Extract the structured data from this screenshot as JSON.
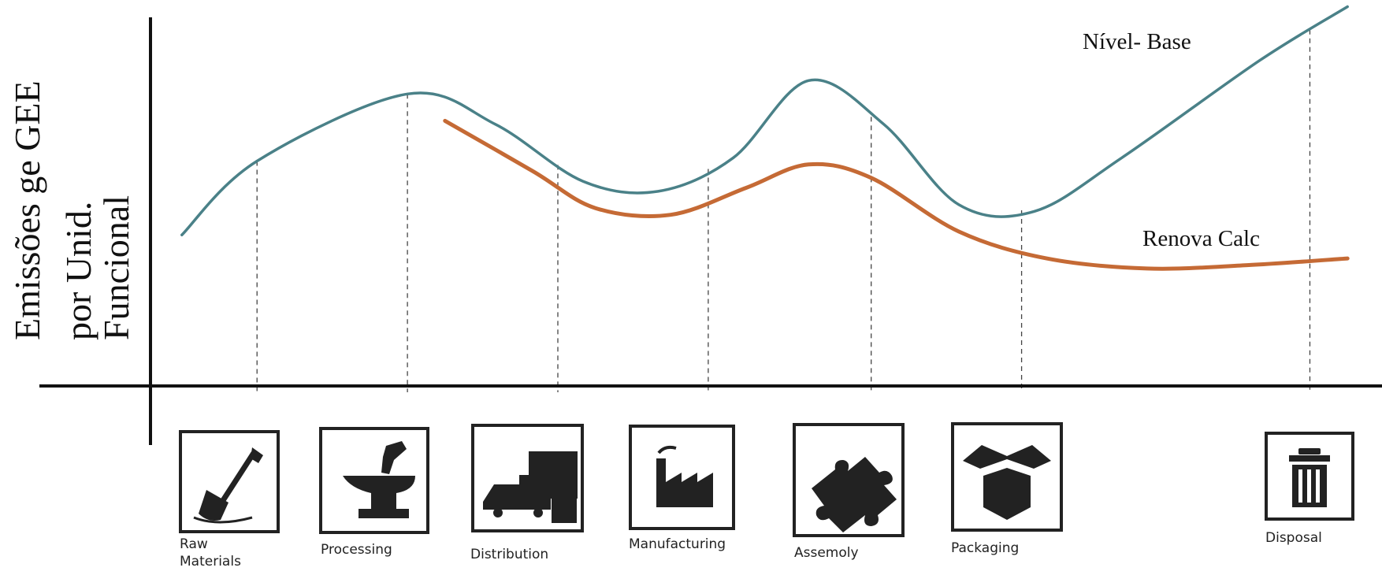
{
  "chart_data": {
    "type": "line",
    "ylabel_lines": [
      "Emissões ge GEE",
      "por Unid.",
      "Funcional"
    ],
    "categories": [
      "Raw Materials",
      "Processing",
      "Distribution",
      "Manufacturing",
      "Assemoly",
      "Packaging",
      "Disposal"
    ],
    "series": [
      {
        "name": "Nível- Base",
        "color": "#4a8188",
        "points": [
          [
            0.0,
            0.45
          ],
          [
            0.6,
            0.67
          ],
          [
            1.8,
            0.87
          ],
          [
            2.5,
            0.78
          ],
          [
            3.2,
            0.61
          ],
          [
            3.8,
            0.58
          ],
          [
            4.4,
            0.68
          ],
          [
            5.0,
            0.91
          ],
          [
            5.6,
            0.78
          ],
          [
            6.2,
            0.54
          ],
          [
            6.8,
            0.52
          ],
          [
            7.5,
            0.68
          ],
          [
            8.6,
            0.97
          ],
          [
            9.3,
            1.13
          ]
        ]
      },
      {
        "name": "Renova Calc",
        "color": "#c56a35",
        "points": [
          [
            2.1,
            0.79
          ],
          [
            2.8,
            0.64
          ],
          [
            3.3,
            0.53
          ],
          [
            3.9,
            0.51
          ],
          [
            4.5,
            0.59
          ],
          [
            5.0,
            0.66
          ],
          [
            5.5,
            0.62
          ],
          [
            6.2,
            0.46
          ],
          [
            6.9,
            0.38
          ],
          [
            7.7,
            0.35
          ],
          [
            8.5,
            0.36
          ],
          [
            9.3,
            0.38
          ]
        ]
      }
    ],
    "x_ticks": [
      0.6,
      1.8,
      3.0,
      4.2,
      5.5,
      6.7,
      9.0
    ],
    "xlim": [
      -0.25,
      9.5
    ],
    "ylim": [
      0,
      1.15
    ],
    "grid": false,
    "legend": "inline labels at line ends"
  },
  "icons": [
    {
      "name": "shovel-icon",
      "label_lines": [
        "Raw",
        "Materials"
      ]
    },
    {
      "name": "anvil-icon",
      "label_lines": [
        "Processing"
      ]
    },
    {
      "name": "truck-icon",
      "label_lines": [
        "Distribution"
      ]
    },
    {
      "name": "factory-icon",
      "label_lines": [
        "Manufacturing"
      ]
    },
    {
      "name": "puzzle-icon",
      "label_lines": [
        "Assemoly"
      ]
    },
    {
      "name": "box-icon",
      "label_lines": [
        "Packaging"
      ]
    },
    {
      "name": "trash-icon",
      "label_lines": [
        "Disposal"
      ]
    }
  ]
}
